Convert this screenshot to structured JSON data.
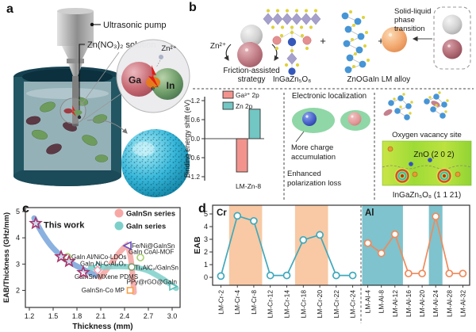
{
  "figure": {
    "panel_a": {
      "label": "a",
      "pump_label": "Ultrasonic pump",
      "solution_label": "Zn(NO₃)₂ solution",
      "zn_ion": "Zn²⁺",
      "ga": "Ga",
      "in": "In",
      "electron": "e⁻"
    },
    "panel_b": {
      "label": "b",
      "zn_ion": "Zn²⁺",
      "strategy_line1": "Friction-assisted",
      "strategy_line2": "strategy",
      "igzo_label": "InGaZn₅O₈",
      "plus1": "+",
      "zno_label": "ZnO",
      "plus2": "+",
      "alloy_label": "GaIn LM alloy",
      "phase_line1": "Solid-liquid",
      "phase_line2": "phase",
      "phase_line3": "transition",
      "electronic_title": "Electronic localization",
      "charge_line1": "More charge",
      "charge_line2": "accumulation",
      "loss_line1": "Enhanced",
      "loss_line2": "polarization loss",
      "vacancy_label": "Oxygen vacancy site",
      "zno_plane": "ZnO (2 0 2)",
      "igzo_plane": "InGaZn₅O₈ (1 1 21)"
    },
    "panel_c": {
      "label": "c"
    },
    "panel_d": {
      "label": "d"
    }
  },
  "chart_data": [
    {
      "id": "binding_energy_shift",
      "type": "bar",
      "categories": [
        "LM-Zn-8"
      ],
      "series": [
        {
          "name": "Ga³⁺ 2p",
          "values": [
            -1.05
          ],
          "color": "#f2948d"
        },
        {
          "name": "Zn 2p",
          "values": [
            0.93
          ],
          "color": "#72c6c3"
        }
      ],
      "ylabel": "Binding energy shift (eV)",
      "yticks": [
        "1.2",
        "0.6",
        "0.0",
        "-0.6",
        "-1.2"
      ],
      "ylim": [
        -1.45,
        1.45
      ],
      "grid": false,
      "legend_position": "top-right"
    },
    {
      "id": "eab_per_thickness_vs_thickness",
      "type": "scatter",
      "xlabel": "Thickness (mm)",
      "ylabel": "EAB/Thickness (GHz/mm)",
      "xticks": [
        "1.2",
        "1.5",
        "1.8",
        "2.1",
        "2.4",
        "2.7",
        "3.0"
      ],
      "yticks": [
        "2",
        "3",
        "4",
        "5"
      ],
      "xlim": [
        1.15,
        3.1
      ],
      "ylim": [
        1.35,
        5.15
      ],
      "annotation": "This work",
      "legend": [
        {
          "label": "GaInSn series",
          "color": "#f7a8a5"
        },
        {
          "label": "GaIn series",
          "color": "#7dd0ca"
        }
      ],
      "this_work_points": [
        [
          1.28,
          4.55
        ],
        [
          1.6,
          3.28
        ],
        [
          1.7,
          3.1
        ],
        [
          1.88,
          2.68
        ]
      ],
      "points": [
        {
          "label": "GaIn Al/NiCo-LDOs",
          "x": 1.68,
          "y": 3.28,
          "marker": "circle",
          "color": "#9acd5a",
          "lx": 1.73,
          "ly": 3.28,
          "anchor": "start"
        },
        {
          "label": "GaIn Ni-C-Al₂O₃",
          "x": 2.06,
          "y": 2.9,
          "marker": "diamond",
          "color": "#4eb8ae",
          "lx": 1.84,
          "ly": 3.03,
          "anchor": "start"
        },
        {
          "label": "GaInSn/MXene PDMS",
          "x": 2.06,
          "y": 2.77,
          "marker": "diamond",
          "color": "#f2a0b5",
          "lx": 1.77,
          "ly": 2.52,
          "anchor": "start"
        },
        {
          "label": "Fe/Ni@GaInSn",
          "x": 2.44,
          "y": 3.7,
          "marker": "triangle-left",
          "color": "#6a4fc2",
          "lx": 2.49,
          "ly": 3.7,
          "anchor": "start"
        },
        {
          "label": "GaIn CoAl-MOF",
          "x": 2.6,
          "y": 3.25,
          "marker": "circle",
          "color": "#a5d06a",
          "lx": 2.45,
          "ly": 3.47,
          "anchor": "start"
        },
        {
          "label": "Ti₃AlC₂/GaInSn",
          "x": 2.49,
          "y": 2.89,
          "marker": "circle",
          "color": "#7f9e70",
          "lx": 2.53,
          "ly": 2.87,
          "anchor": "start"
        },
        {
          "label": "GaInSn-Co MP",
          "x": 2.47,
          "y": 2.0,
          "marker": "square",
          "color": "#f5a24b",
          "lx": 2.4,
          "ly": 2.02,
          "anchor": "end"
        },
        {
          "label": "PPy@rGO@GaIn",
          "x": 3.01,
          "y": 2.15,
          "marker": "triangle-right",
          "color": "#5bbfb9",
          "lx": 3.06,
          "ly": 2.33,
          "anchor": "end"
        }
      ]
    },
    {
      "id": "eab_vs_composition",
      "type": "line",
      "ylabel": "EAB",
      "yticks": [
        "0",
        "1",
        "2",
        "3",
        "4",
        "5"
      ],
      "ylim": [
        -0.6,
        5.7
      ],
      "groups": [
        {
          "name": "Cr",
          "name_color": "#2fa7bd",
          "line_color": "#3fa9bc",
          "band_color": "#f8c9a4",
          "categories": [
            "LM-Cr-2",
            "LM-Cr-4",
            "LM-Cr-8",
            "LM-Cr-12",
            "LM-Cr-14",
            "LM-Cr-18",
            "LM-Cr-20",
            "LM-Cr-22",
            "LM-Cr-24"
          ],
          "values": [
            0.1,
            4.85,
            4.45,
            0.15,
            0.15,
            2.95,
            3.35,
            0.15,
            0.15
          ],
          "bands": [
            [
              1,
              2
            ],
            [
              5,
              6
            ]
          ]
        },
        {
          "name": "Al",
          "name_color": "#ee4d35",
          "line_color": "#f08a5b",
          "band_color": "#7ec3cd",
          "categories": [
            "LM-Al-4",
            "LM-Al-8",
            "LM-Al-12",
            "LM-Al-16",
            "LM-Al-20",
            "LM-Al-24",
            "LM-Al-28",
            "LM-Al-32"
          ],
          "values": [
            2.7,
            1.9,
            3.4,
            0.3,
            0.3,
            4.8,
            0.3,
            0.3
          ],
          "bands": [
            [
              0,
              2
            ],
            [
              5,
              5
            ]
          ]
        }
      ]
    }
  ]
}
